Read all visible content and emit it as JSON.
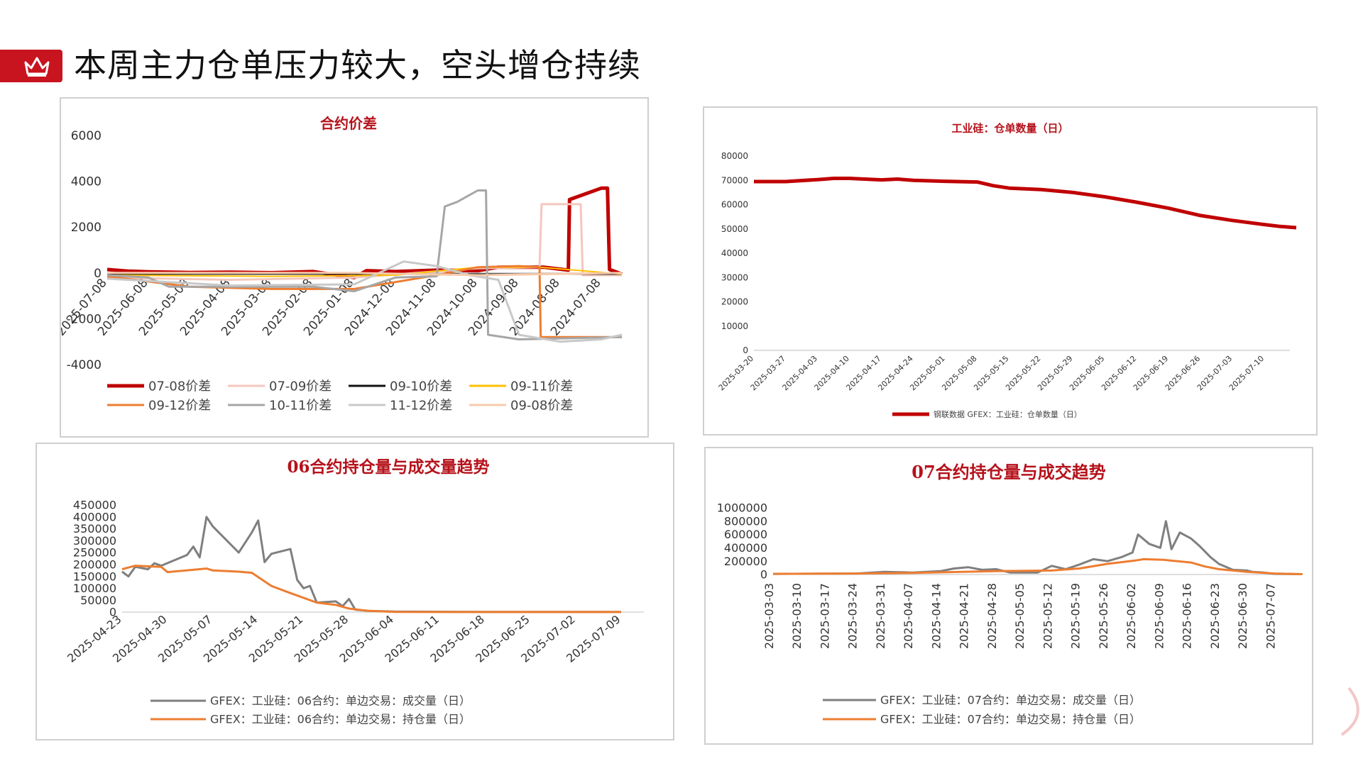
{
  "page": {
    "title": "本周主力仓单压力较大，空头增仓持续",
    "accent": "#c8141e"
  },
  "chart_data": [
    {
      "id": "spread",
      "type": "line",
      "title": "合约价差",
      "x": [
        "2025-07-08",
        "2025-06-08",
        "2025-05-08",
        "2025-04-08",
        "2025-03-08",
        "2025-02-08",
        "2025-01-08",
        "2024-12-08",
        "2024-11-08",
        "2024-10-08",
        "2024-09-08",
        "2024-08-08",
        "2024-07-08"
      ],
      "ylim": [
        -4000,
        6000
      ],
      "yticks": [
        -4000,
        -2000,
        0,
        2000,
        4000,
        6000
      ],
      "legend_position": "bottom",
      "series": [
        {
          "name": "07-08价差",
          "color": "#c00000",
          "width": 5,
          "points": [
            [
              0,
              150
            ],
            [
              0.5,
              80
            ],
            [
              1,
              50
            ],
            [
              2,
              20
            ],
            [
              3,
              30
            ],
            [
              4,
              10
            ],
            [
              5,
              60
            ],
            [
              6,
              -200
            ],
            [
              6.3,
              100
            ],
            [
              7,
              60
            ],
            [
              8,
              120
            ],
            [
              9,
              100
            ],
            [
              9.5,
              250
            ],
            [
              10.6,
              250
            ],
            [
              11.2,
              120
            ],
            [
              11.23,
              3200
            ],
            [
              12,
              3700
            ],
            [
              12.15,
              3700
            ],
            [
              12.2,
              150
            ],
            [
              12.5,
              -50
            ]
          ]
        },
        {
          "name": "07-09价差",
          "color": "#f4c7bd",
          "width": 3,
          "points": [
            [
              0,
              -200
            ],
            [
              3,
              -300
            ],
            [
              6,
              -200
            ],
            [
              9,
              200
            ],
            [
              10.5,
              250
            ],
            [
              10.55,
              3000
            ],
            [
              11.5,
              3000
            ],
            [
              11.55,
              -100
            ],
            [
              12.5,
              -100
            ]
          ]
        },
        {
          "name": "09-10价差",
          "color": "#111111",
          "width": 2,
          "points": [
            [
              0,
              -50
            ],
            [
              4,
              -50
            ],
            [
              8,
              -50
            ],
            [
              12.5,
              -50
            ]
          ]
        },
        {
          "name": "09-11价差",
          "color": "#ffc000",
          "width": 2,
          "points": [
            [
              0,
              -100
            ],
            [
              4,
              -150
            ],
            [
              7,
              -100
            ],
            [
              9,
              250
            ],
            [
              10.5,
              250
            ],
            [
              12.5,
              -50
            ]
          ]
        },
        {
          "name": "09-12价差",
          "color": "#ed7d31",
          "width": 3,
          "points": [
            [
              0,
              -150
            ],
            [
              2,
              -600
            ],
            [
              4,
              -700
            ],
            [
              6,
              -700
            ],
            [
              7,
              -400
            ],
            [
              8,
              -100
            ],
            [
              9,
              250
            ],
            [
              10,
              300
            ],
            [
              10.5,
              250
            ],
            [
              10.53,
              -2800
            ],
            [
              11,
              -2800
            ],
            [
              12,
              -2800
            ],
            [
              12.5,
              -2800
            ]
          ]
        },
        {
          "name": "10-11价差",
          "color": "#a6a6a6",
          "width": 3,
          "points": [
            [
              0,
              -100
            ],
            [
              1,
              -200
            ],
            [
              1.5,
              -600
            ],
            [
              3,
              -600
            ],
            [
              5,
              -600
            ],
            [
              6,
              -800
            ],
            [
              7,
              -200
            ],
            [
              8,
              -150
            ],
            [
              8.2,
              2900
            ],
            [
              8.5,
              3100
            ],
            [
              9,
              3600
            ],
            [
              9.2,
              3600
            ],
            [
              9.25,
              -2700
            ],
            [
              10,
              -2900
            ],
            [
              12.5,
              -2800
            ]
          ]
        },
        {
          "name": "11-12价差",
          "color": "#c8c8c8",
          "width": 3,
          "points": [
            [
              0,
              -250
            ],
            [
              3,
              -550
            ],
            [
              6,
              -500
            ],
            [
              7.2,
              500
            ],
            [
              8,
              300
            ],
            [
              8.8,
              -100
            ],
            [
              9.5,
              -300
            ],
            [
              10,
              -2700
            ],
            [
              11,
              -3000
            ],
            [
              12,
              -2900
            ],
            [
              12.5,
              -2700
            ]
          ]
        },
        {
          "name": "09-08价差",
          "color": "#f7cbac",
          "width": 3,
          "points": [
            [
              0,
              0
            ],
            [
              6,
              0
            ],
            [
              9,
              -100
            ],
            [
              12.5,
              0
            ]
          ]
        }
      ]
    },
    {
      "id": "warrants",
      "type": "line",
      "title": "工业硅：仓单数量（日）",
      "x": [
        "2025-03-20",
        "2025-03-27",
        "2025-04-03",
        "2025-04-10",
        "2025-04-17",
        "2025-04-24",
        "2025-05-01",
        "2025-05-08",
        "2025-05-15",
        "2025-05-22",
        "2025-05-29",
        "2025-06-05",
        "2025-06-12",
        "2025-06-19",
        "2025-06-26",
        "2025-07-03",
        "2025-07-10"
      ],
      "ylim": [
        0,
        80000
      ],
      "yticks": [
        0,
        10000,
        20000,
        30000,
        40000,
        50000,
        60000,
        70000,
        80000
      ],
      "legend_position": "bottom",
      "series": [
        {
          "name": "钢联数据 GFEX：工业硅：仓单数量（日）",
          "color": "#c00000",
          "width": 5,
          "points": [
            [
              0,
              69500
            ],
            [
              1,
              69500
            ],
            [
              2,
              70300
            ],
            [
              2.5,
              70800
            ],
            [
              3,
              70800
            ],
            [
              4,
              70200
            ],
            [
              4.5,
              70500
            ],
            [
              5,
              70000
            ],
            [
              6,
              69600
            ],
            [
              7,
              69300
            ],
            [
              7.5,
              67800
            ],
            [
              8,
              66800
            ],
            [
              9,
              66200
            ],
            [
              10,
              65000
            ],
            [
              11,
              63200
            ],
            [
              12,
              61000
            ],
            [
              13,
              58500
            ],
            [
              14,
              55500
            ],
            [
              15,
              53500
            ],
            [
              16,
              51800
            ],
            [
              16.5,
              51000
            ],
            [
              17,
              50500
            ]
          ]
        }
      ]
    },
    {
      "id": "c06",
      "type": "line",
      "title": "06合约持仓量与成交量趋势",
      "x": [
        "2025-04-23",
        "2025-04-30",
        "2025-05-07",
        "2025-05-14",
        "2025-05-21",
        "2025-05-28",
        "2025-06-04",
        "2025-06-11",
        "2025-06-18",
        "2025-06-25",
        "2025-07-02",
        "2025-07-09"
      ],
      "ylim": [
        0,
        450000
      ],
      "yticks": [
        0,
        50000,
        100000,
        150000,
        200000,
        250000,
        300000,
        350000,
        400000,
        450000
      ],
      "legend_position": "bottom",
      "series": [
        {
          "name": "GFEX：工业硅：06合约：单边交易：成交量（日）",
          "color": "#7f7f7f",
          "width": 3,
          "points": [
            [
              0,
              170000
            ],
            [
              0.14,
              150000
            ],
            [
              0.29,
              190000
            ],
            [
              0.57,
              180000
            ],
            [
              0.71,
              205000
            ],
            [
              0.86,
              195000
            ],
            [
              1.43,
              240000
            ],
            [
              1.57,
              275000
            ],
            [
              1.71,
              230000
            ],
            [
              1.86,
              400000
            ],
            [
              2,
              360000
            ],
            [
              2.57,
              250000
            ],
            [
              2.86,
              335000
            ],
            [
              3,
              385000
            ],
            [
              3.14,
              210000
            ],
            [
              3.29,
              245000
            ],
            [
              3.71,
              265000
            ],
            [
              3.86,
              135000
            ],
            [
              4,
              100000
            ],
            [
              4.14,
              110000
            ],
            [
              4.29,
              40000
            ],
            [
              4.71,
              45000
            ],
            [
              4.86,
              25000
            ],
            [
              5,
              55000
            ],
            [
              5.14,
              10000
            ],
            [
              5.43,
              5000
            ],
            [
              6,
              2000
            ],
            [
              8,
              500
            ],
            [
              11,
              500
            ]
          ]
        },
        {
          "name": "GFEX：工业硅：06合约：单边交易：持仓量（日）",
          "color": "#ed7d31",
          "width": 3,
          "points": [
            [
              0,
              180000
            ],
            [
              0.29,
              195000
            ],
            [
              0.86,
              190000
            ],
            [
              1,
              168000
            ],
            [
              1.86,
              183000
            ],
            [
              2,
              175000
            ],
            [
              2.57,
              170000
            ],
            [
              2.86,
              165000
            ],
            [
              3.29,
              110000
            ],
            [
              3.71,
              80000
            ],
            [
              4.29,
              40000
            ],
            [
              4.71,
              30000
            ],
            [
              5,
              15000
            ],
            [
              5.43,
              5000
            ],
            [
              6,
              1000
            ],
            [
              8,
              200
            ],
            [
              11,
              200
            ]
          ]
        }
      ]
    },
    {
      "id": "c07",
      "type": "line",
      "title": "07合约持仓量与成交趋势",
      "x": [
        "2025-03-03",
        "2025-03-10",
        "2025-03-17",
        "2025-03-24",
        "2025-03-31",
        "2025-04-07",
        "2025-04-14",
        "2025-04-21",
        "2025-04-28",
        "2025-05-05",
        "2025-05-12",
        "2025-05-19",
        "2025-05-26",
        "2025-06-02",
        "2025-06-09",
        "2025-06-16",
        "2025-06-23",
        "2025-06-30",
        "2025-07-07"
      ],
      "ylim": [
        0,
        1000000
      ],
      "yticks": [
        0,
        200000,
        400000,
        600000,
        800000,
        1000000
      ],
      "legend_position": "bottom",
      "series": [
        {
          "name": "GFEX：工业硅：07合约：单边交易：成交量（日）",
          "color": "#7f7f7f",
          "width": 3,
          "points": [
            [
              0,
              10000
            ],
            [
              3,
              15000
            ],
            [
              4,
              40000
            ],
            [
              5,
              30000
            ],
            [
              6,
              50000
            ],
            [
              6.5,
              90000
            ],
            [
              7,
              110000
            ],
            [
              7.5,
              70000
            ],
            [
              8,
              80000
            ],
            [
              8.5,
              30000
            ],
            [
              9.5,
              30000
            ],
            [
              10,
              130000
            ],
            [
              10.5,
              80000
            ],
            [
              11,
              150000
            ],
            [
              11.5,
              230000
            ],
            [
              12,
              200000
            ],
            [
              12.5,
              260000
            ],
            [
              12.9,
              330000
            ],
            [
              13.1,
              600000
            ],
            [
              13.5,
              460000
            ],
            [
              13.9,
              400000
            ],
            [
              14.1,
              800000
            ],
            [
              14.3,
              380000
            ],
            [
              14.6,
              630000
            ],
            [
              15,
              540000
            ],
            [
              15.3,
              430000
            ],
            [
              15.7,
              260000
            ],
            [
              16,
              160000
            ],
            [
              16.5,
              70000
            ],
            [
              17,
              60000
            ],
            [
              17.2,
              40000
            ],
            [
              17.6,
              30000
            ],
            [
              18,
              10000
            ],
            [
              19,
              5000
            ]
          ]
        },
        {
          "name": "GFEX：工业硅：07合约：单边交易：持仓量（日）",
          "color": "#ed7d31",
          "width": 3,
          "points": [
            [
              0,
              10000
            ],
            [
              3,
              15000
            ],
            [
              5,
              25000
            ],
            [
              8,
              50000
            ],
            [
              10,
              60000
            ],
            [
              11,
              90000
            ],
            [
              12,
              160000
            ],
            [
              13,
              210000
            ],
            [
              13.3,
              230000
            ],
            [
              14,
              220000
            ],
            [
              15,
              180000
            ],
            [
              15.5,
              120000
            ],
            [
              16,
              80000
            ],
            [
              17,
              40000
            ],
            [
              18,
              15000
            ],
            [
              19,
              5000
            ]
          ]
        }
      ]
    }
  ]
}
